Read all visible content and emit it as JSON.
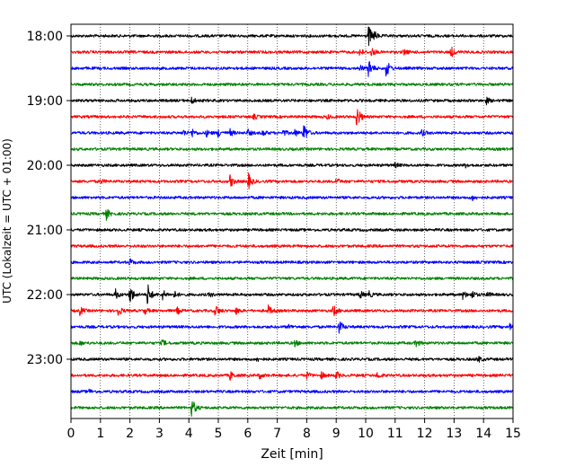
{
  "chart_data": {
    "type": "line",
    "title": "",
    "xlabel": "Zeit  [min]",
    "ylabel": "UTC (Lokalzeit = UTC + 01:00)",
    "xlim": [
      0,
      15
    ],
    "x_ticks": [
      0,
      1,
      2,
      3,
      4,
      5,
      6,
      7,
      8,
      9,
      10,
      11,
      12,
      13,
      14,
      15
    ],
    "x_tick_labels": [
      "0",
      "1",
      "2",
      "3",
      "4",
      "5",
      "6",
      "7",
      "8",
      "9",
      "10",
      "11",
      "12",
      "13",
      "14",
      "15"
    ],
    "y_tick_labels": [
      "18:00",
      "19:00",
      "20:00",
      "21:00",
      "22:00",
      "23:00"
    ],
    "grid": "vertical dotted",
    "color_cycle": [
      "#000000",
      "#ff0000",
      "#0000ff",
      "#008000"
    ],
    "rows_per_hour": 4,
    "series": [
      {
        "start": "18:00",
        "events": [
          {
            "t": 10.1,
            "amp": 1.0
          },
          {
            "t": 10.3,
            "amp": 0.3
          }
        ]
      },
      {
        "start": "18:15",
        "events": [
          {
            "t": 9.8,
            "amp": 0.4
          },
          {
            "t": 10.2,
            "amp": 0.4
          },
          {
            "t": 11.3,
            "amp": 0.3
          },
          {
            "t": 12.9,
            "amp": 0.5
          }
        ]
      },
      {
        "start": "18:30",
        "events": [
          {
            "t": 10.1,
            "amp": 1.0
          },
          {
            "t": 10.7,
            "amp": 0.9
          },
          {
            "t": 9.8,
            "amp": 0.3
          }
        ]
      },
      {
        "start": "18:45",
        "events": []
      },
      {
        "start": "19:00",
        "events": [
          {
            "t": 4.1,
            "amp": 0.3
          },
          {
            "t": 14.1,
            "amp": 0.3
          }
        ]
      },
      {
        "start": "19:15",
        "events": [
          {
            "t": 9.7,
            "amp": 1.2
          },
          {
            "t": 6.2,
            "amp": 0.2
          },
          {
            "t": 8.7,
            "amp": 0.2
          }
        ]
      },
      {
        "start": "19:30",
        "events": [
          {
            "t": 3.8,
            "amp": 0.3
          },
          {
            "t": 4.1,
            "amp": 0.4
          },
          {
            "t": 4.6,
            "amp": 0.3
          },
          {
            "t": 5.0,
            "amp": 0.4
          },
          {
            "t": 5.4,
            "amp": 0.3
          },
          {
            "t": 6.0,
            "amp": 0.3
          },
          {
            "t": 6.5,
            "amp": 0.3
          },
          {
            "t": 7.2,
            "amp": 0.3
          },
          {
            "t": 7.6,
            "amp": 0.3
          },
          {
            "t": 7.9,
            "amp": 1.0
          },
          {
            "t": 11.9,
            "amp": 0.3
          }
        ]
      },
      {
        "start": "19:45",
        "events": []
      },
      {
        "start": "20:00",
        "events": [
          {
            "t": 11.0,
            "amp": 0.2
          },
          {
            "t": 13.4,
            "amp": 0.2
          }
        ]
      },
      {
        "start": "20:15",
        "events": [
          {
            "t": 5.4,
            "amp": 0.6
          },
          {
            "t": 6.0,
            "amp": 0.9
          },
          {
            "t": 9.0,
            "amp": 0.3
          },
          {
            "t": 1.0,
            "amp": 0.2
          }
        ]
      },
      {
        "start": "20:30",
        "events": [
          {
            "t": 13.6,
            "amp": 0.3
          }
        ]
      },
      {
        "start": "20:45",
        "events": [
          {
            "t": 1.2,
            "amp": 0.5
          }
        ]
      },
      {
        "start": "21:00",
        "events": []
      },
      {
        "start": "21:15",
        "events": []
      },
      {
        "start": "21:30",
        "events": [
          {
            "t": 2.0,
            "amp": 0.3
          }
        ]
      },
      {
        "start": "21:45",
        "events": []
      },
      {
        "start": "22:00",
        "events": [
          {
            "t": 1.5,
            "amp": 0.5
          },
          {
            "t": 2.0,
            "amp": 1.0
          },
          {
            "t": 2.6,
            "amp": 1.1
          },
          {
            "t": 3.1,
            "amp": 0.5
          },
          {
            "t": 3.5,
            "amp": 0.3
          },
          {
            "t": 4.7,
            "amp": 0.2
          },
          {
            "t": 9.8,
            "amp": 0.4
          },
          {
            "t": 10.1,
            "amp": 0.3
          },
          {
            "t": 13.3,
            "amp": 0.4
          },
          {
            "t": 13.6,
            "amp": 0.4
          },
          {
            "t": 14.1,
            "amp": 0.3
          }
        ]
      },
      {
        "start": "22:15",
        "events": [
          {
            "t": 0.3,
            "amp": 0.4
          },
          {
            "t": 1.6,
            "amp": 0.5
          },
          {
            "t": 2.5,
            "amp": 0.3
          },
          {
            "t": 3.6,
            "amp": 0.3
          },
          {
            "t": 4.9,
            "amp": 0.6
          },
          {
            "t": 5.6,
            "amp": 0.3
          },
          {
            "t": 6.7,
            "amp": 0.5
          },
          {
            "t": 8.9,
            "amp": 0.6
          }
        ]
      },
      {
        "start": "22:30",
        "events": [
          {
            "t": 9.1,
            "amp": 0.7
          },
          {
            "t": 14.9,
            "amp": 0.3
          },
          {
            "t": 7.4,
            "amp": 0.2
          }
        ]
      },
      {
        "start": "22:45",
        "events": [
          {
            "t": 0.3,
            "amp": 0.2
          },
          {
            "t": 3.1,
            "amp": 0.3
          },
          {
            "t": 7.6,
            "amp": 0.3
          },
          {
            "t": 11.7,
            "amp": 0.4
          }
        ]
      },
      {
        "start": "23:00",
        "events": [
          {
            "t": 13.8,
            "amp": 0.3
          },
          {
            "t": 6.3,
            "amp": 0.2
          }
        ]
      },
      {
        "start": "23:15",
        "events": [
          {
            "t": 5.4,
            "amp": 0.4
          },
          {
            "t": 6.4,
            "amp": 0.3
          },
          {
            "t": 8.0,
            "amp": 0.3
          },
          {
            "t": 8.5,
            "amp": 0.3
          },
          {
            "t": 9.0,
            "amp": 0.4
          },
          {
            "t": 10.4,
            "amp": 0.3
          }
        ]
      },
      {
        "start": "23:30",
        "events": [
          {
            "t": 0.6,
            "amp": 0.2
          }
        ]
      },
      {
        "start": "23:45",
        "events": [
          {
            "t": 4.1,
            "amp": 1.0
          }
        ]
      }
    ]
  }
}
